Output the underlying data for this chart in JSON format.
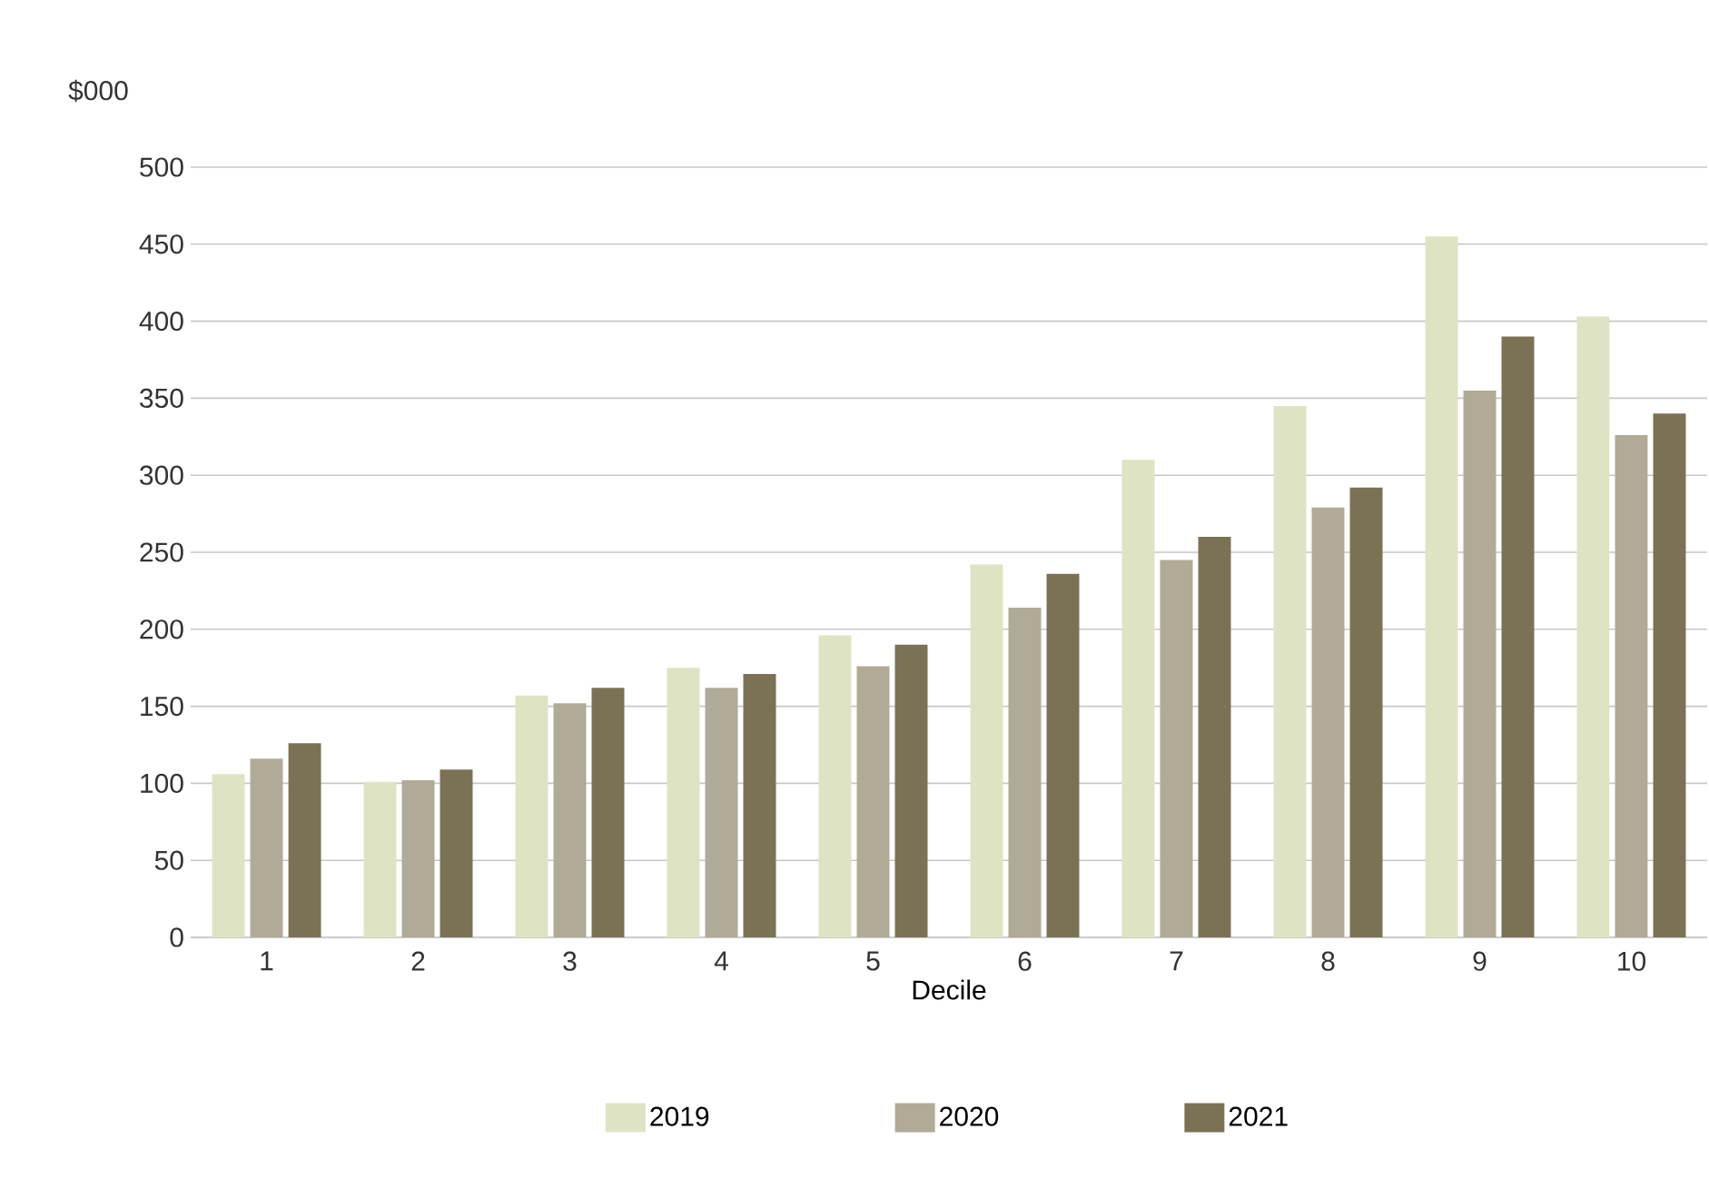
{
  "chart_data": {
    "type": "bar",
    "ylabel": "$000",
    "xlabel": "Decile",
    "categories": [
      "1",
      "2",
      "3",
      "4",
      "5",
      "6",
      "7",
      "8",
      "9",
      "10"
    ],
    "series": [
      {
        "name": "2019",
        "color": "#dee4c3",
        "values": [
          106,
          101,
          157,
          175,
          196,
          242,
          310,
          345,
          455,
          403
        ]
      },
      {
        "name": "2020",
        "color": "#b0aa96",
        "values": [
          116,
          102,
          152,
          162,
          176,
          214,
          245,
          279,
          355,
          326
        ]
      },
      {
        "name": "2021",
        "color": "#7b7256",
        "values": [
          126,
          109,
          162,
          171,
          190,
          236,
          260,
          292,
          390,
          340
        ]
      }
    ],
    "ylim": [
      0,
      500
    ],
    "yticks": [
      0,
      50,
      100,
      150,
      200,
      250,
      300,
      350,
      400,
      450,
      500
    ],
    "grid": "y",
    "legend": "bottom"
  }
}
